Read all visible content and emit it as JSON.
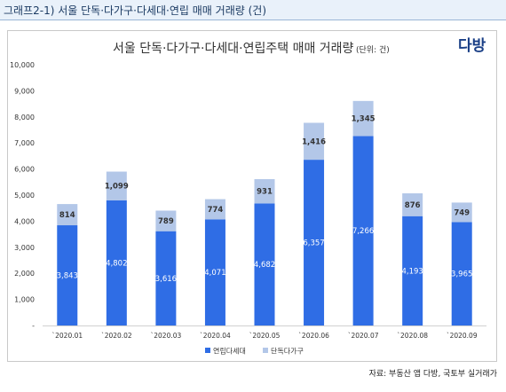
{
  "header": {
    "title": "그래프2-1) 서울 단독·다가구·다세대·연립 매매 거래량 (건)"
  },
  "brand": {
    "logo_text": "다방",
    "color": "#1a3f86"
  },
  "source_note": "자료: 부동산 앱 다방, 국토부 실거래가",
  "chart_data": {
    "type": "bar",
    "stacked": true,
    "title": "서울 단독·다가구·다세대·연립주택 매매 거래량",
    "unit": "(단위: 건)",
    "categories": [
      "`2020.01",
      "`2020.02",
      "`2020.03",
      "`2020.04",
      "`2020.05",
      "`2020.06",
      "`2020.07",
      "`2020.08",
      "`2020.09"
    ],
    "series": [
      {
        "name": "연립다세대",
        "color": "#2f6de5",
        "values": [
          3843,
          4802,
          3616,
          4071,
          4682,
          6357,
          7266,
          4193,
          3965
        ]
      },
      {
        "name": "단독다가구",
        "color": "#b3c7e8",
        "values": [
          814,
          1099,
          789,
          774,
          931,
          1416,
          1345,
          876,
          749
        ]
      }
    ],
    "ylim": [
      0,
      10000
    ],
    "yticks": [
      "-",
      "1,000",
      "2,000",
      "3,000",
      "4,000",
      "5,000",
      "6,000",
      "7,000",
      "8,000",
      "9,000",
      "10,000"
    ],
    "grid": false,
    "legend_position": "bottom"
  }
}
